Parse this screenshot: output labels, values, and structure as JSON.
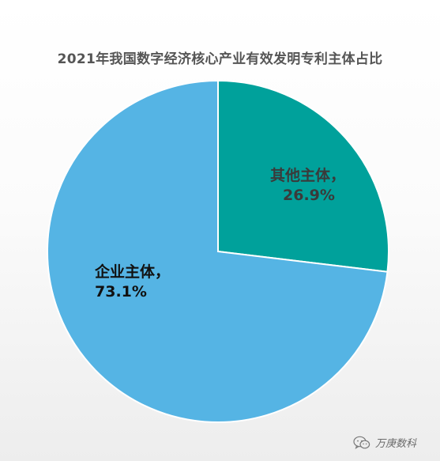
{
  "chart_data": {
    "type": "pie",
    "title": "2021年我国数字经济核心产业有效发明专利主体占比",
    "slices": [
      {
        "label": "其他主体，",
        "value_label": "26.9%",
        "value": 26.9,
        "color": "#00a19b"
      },
      {
        "label": "企业主体，",
        "value_label": "73.1%",
        "value": 73.1,
        "color": "#55b4e4"
      }
    ],
    "start_angle": "12 o'clock",
    "direction": "clockwise"
  },
  "watermark": {
    "text": "万庚数科",
    "icon": "wechat-icon"
  }
}
